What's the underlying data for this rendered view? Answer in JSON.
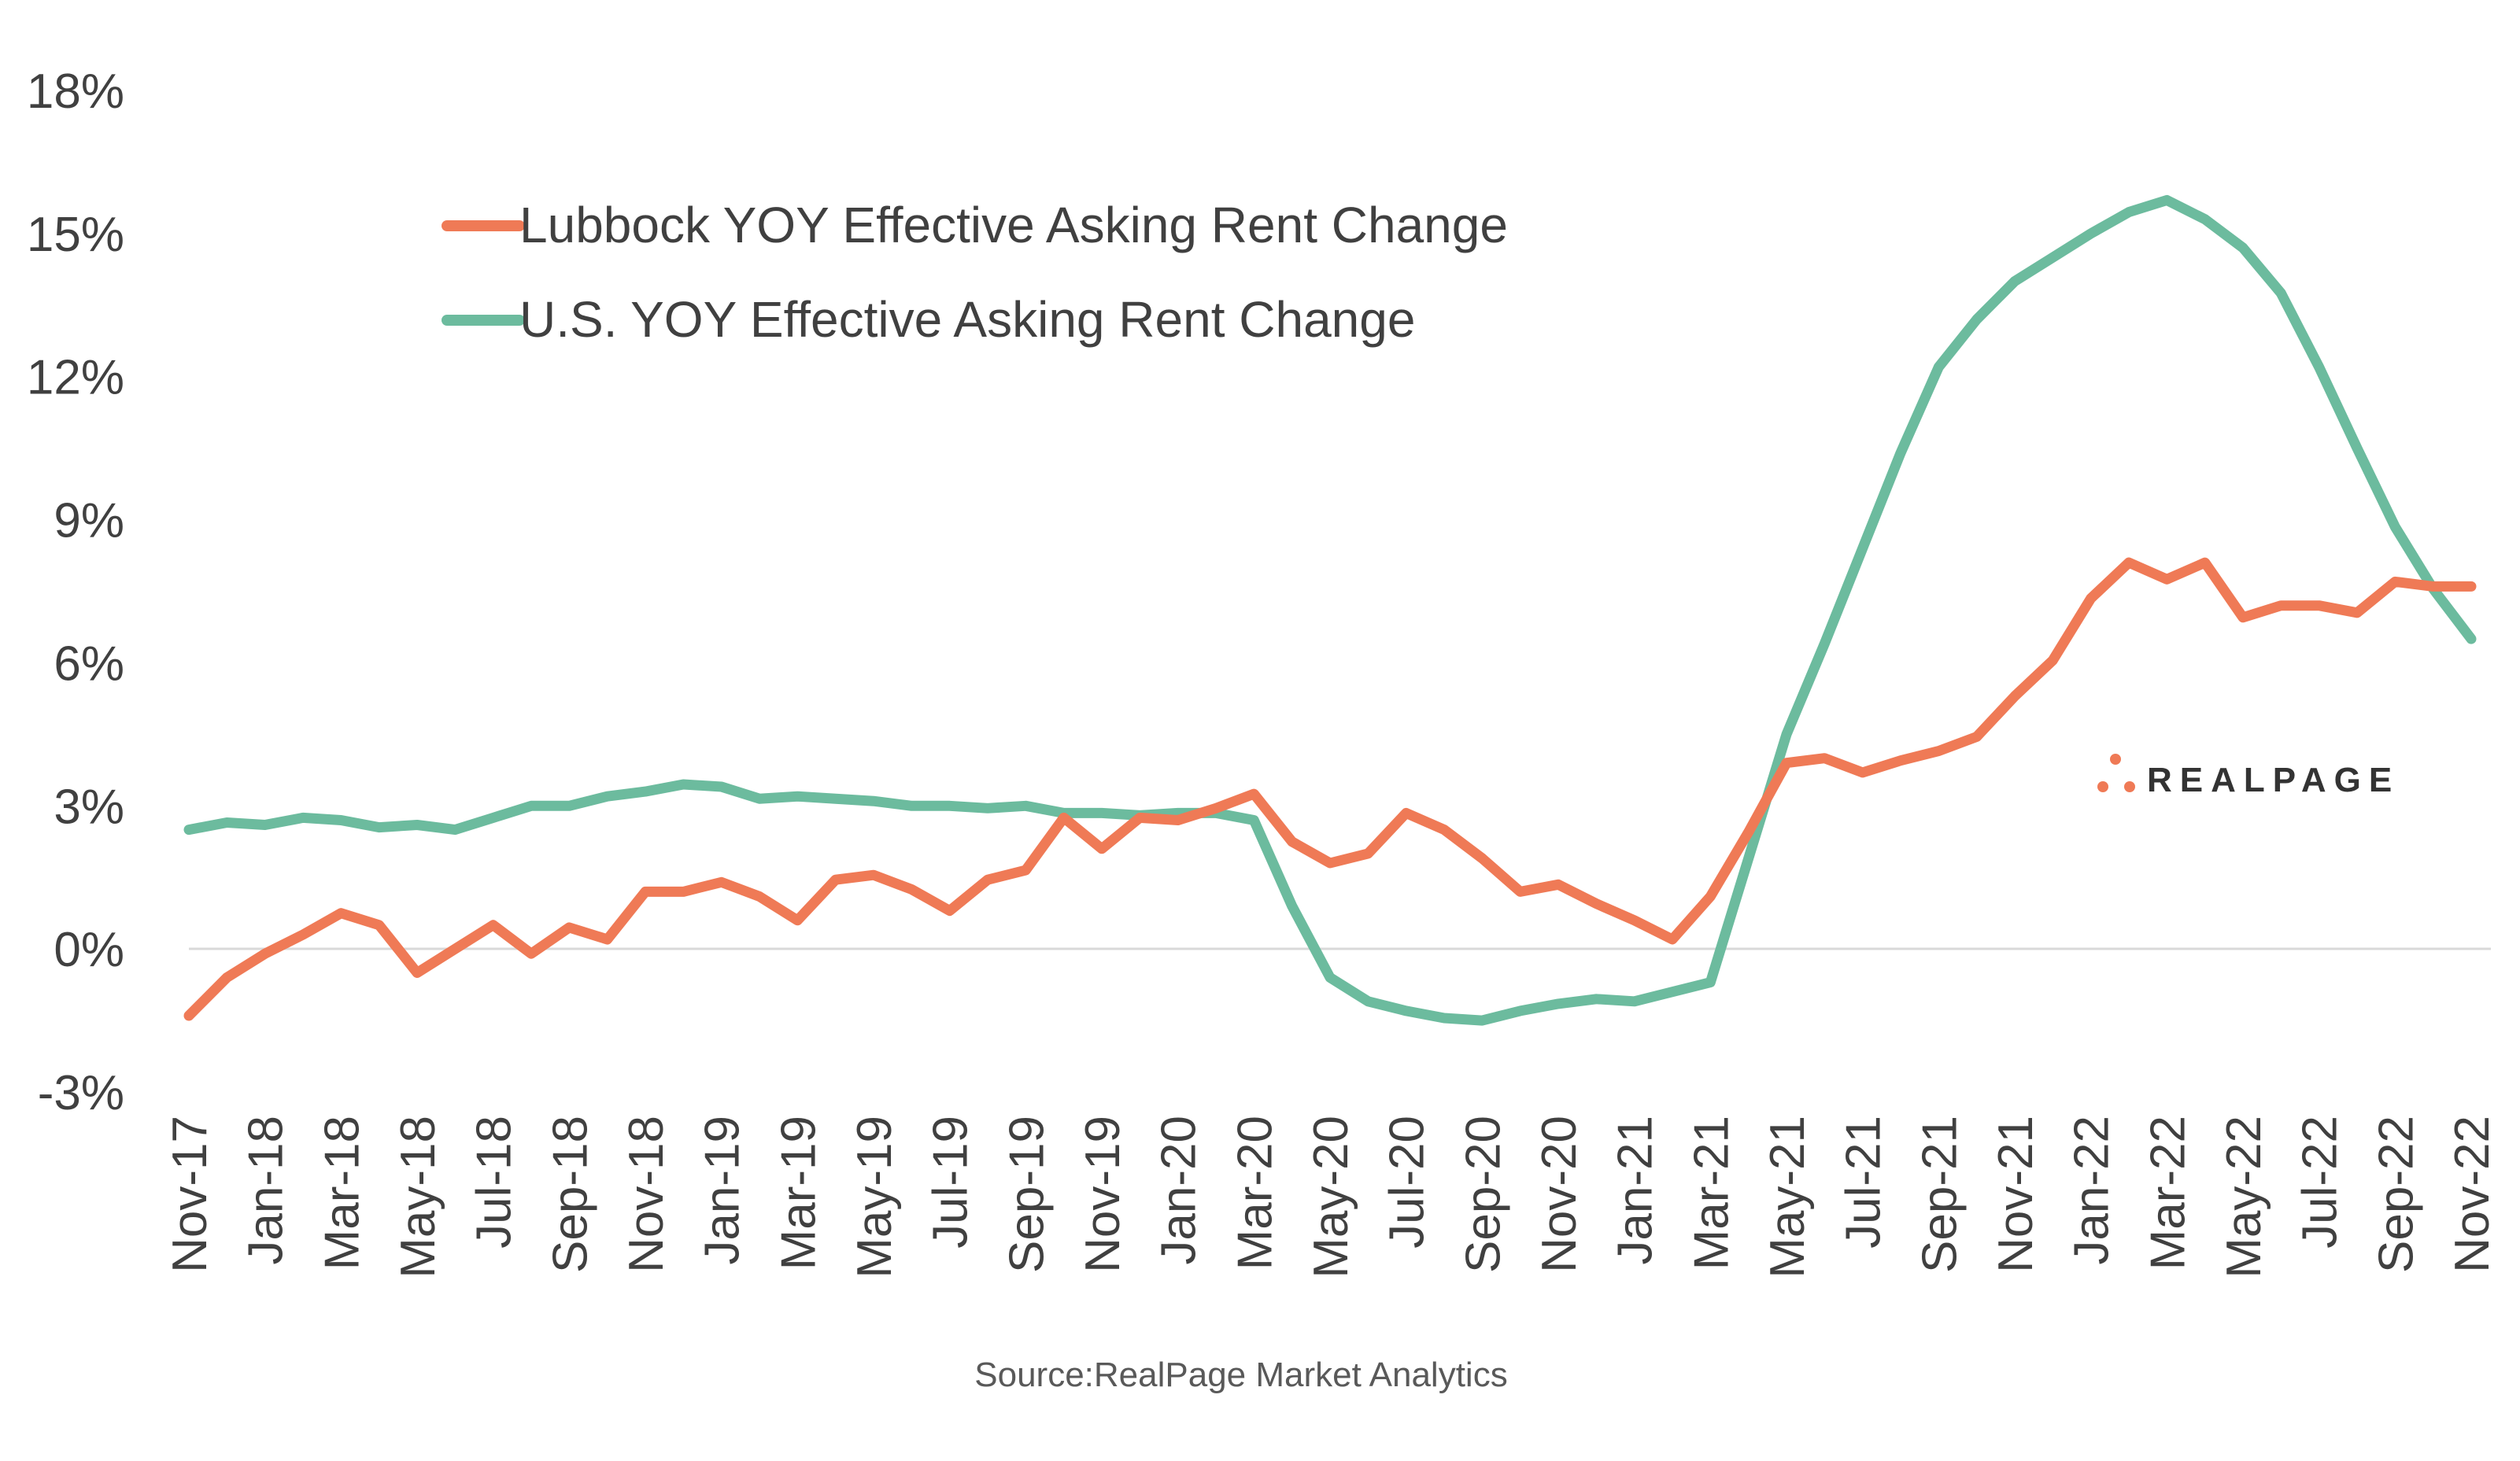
{
  "chart_data": {
    "type": "line",
    "title": "",
    "xlabel": "",
    "ylabel": "",
    "ylim": [
      -3,
      18
    ],
    "y_ticks": [
      "18%",
      "15%",
      "12%",
      "9%",
      "6%",
      "3%",
      "0%",
      "-3%"
    ],
    "y_tick_values": [
      18,
      15,
      12,
      9,
      6,
      3,
      0,
      -3
    ],
    "x_tick_labels": [
      "Nov-17",
      "Jan-18",
      "Mar-18",
      "May-18",
      "Jul-18",
      "Sep-18",
      "Nov-18",
      "Jan-19",
      "Mar-19",
      "May-19",
      "Jul-19",
      "Sep-19",
      "Nov-19",
      "Jan-20",
      "Mar-20",
      "May-20",
      "Jul-20",
      "Sep-20",
      "Nov-20",
      "Jan-21",
      "Mar-21",
      "May-21",
      "Jul-21",
      "Sep-21",
      "Nov-21",
      "Jan-22",
      "Mar-22",
      "May-22",
      "Jul-22",
      "Sep-22",
      "Nov-22"
    ],
    "months_count": 61,
    "legend_position": "top-left",
    "series": [
      {
        "name": "Lubbock YOY Effective Asking Rent Change",
        "color": "#EF7A56",
        "values": [
          -1.4,
          -0.6,
          -0.1,
          0.3,
          0.75,
          0.5,
          -0.5,
          0.0,
          0.5,
          -0.1,
          0.45,
          0.2,
          1.2,
          1.2,
          1.4,
          1.1,
          0.6,
          1.45,
          1.55,
          1.25,
          0.8,
          1.45,
          1.65,
          2.75,
          2.1,
          2.75,
          2.7,
          2.95,
          3.25,
          2.25,
          1.8,
          2.0,
          2.85,
          2.5,
          1.9,
          1.2,
          1.35,
          0.95,
          0.6,
          0.2,
          1.1,
          2.45,
          3.9,
          4.0,
          3.7,
          3.95,
          4.15,
          4.45,
          5.3,
          6.05,
          7.35,
          8.1,
          7.75,
          8.1,
          6.95,
          7.2,
          7.2,
          7.05,
          7.7,
          7.6,
          7.6
        ]
      },
      {
        "name": "U.S. YOY Effective Asking Rent Change",
        "color": "#6CBB9E",
        "values": [
          2.5,
          2.65,
          2.6,
          2.75,
          2.7,
          2.55,
          2.6,
          2.5,
          2.75,
          3.0,
          3.0,
          3.2,
          3.3,
          3.45,
          3.4,
          3.15,
          3.2,
          3.15,
          3.1,
          3.0,
          3.0,
          2.95,
          3.0,
          2.85,
          2.85,
          2.8,
          2.85,
          2.85,
          2.7,
          0.9,
          -0.6,
          -1.1,
          -1.3,
          -1.45,
          -1.5,
          -1.3,
          -1.15,
          -1.05,
          -1.1,
          -0.9,
          -0.7,
          1.9,
          4.5,
          6.4,
          8.4,
          10.4,
          12.2,
          13.2,
          14.0,
          14.5,
          15.0,
          15.45,
          15.7,
          15.3,
          14.7,
          13.75,
          12.2,
          10.5,
          8.85,
          7.55,
          6.5
        ]
      }
    ],
    "source": "Source:RealPage Market Analytics",
    "logo_text": "REALPAGE"
  }
}
